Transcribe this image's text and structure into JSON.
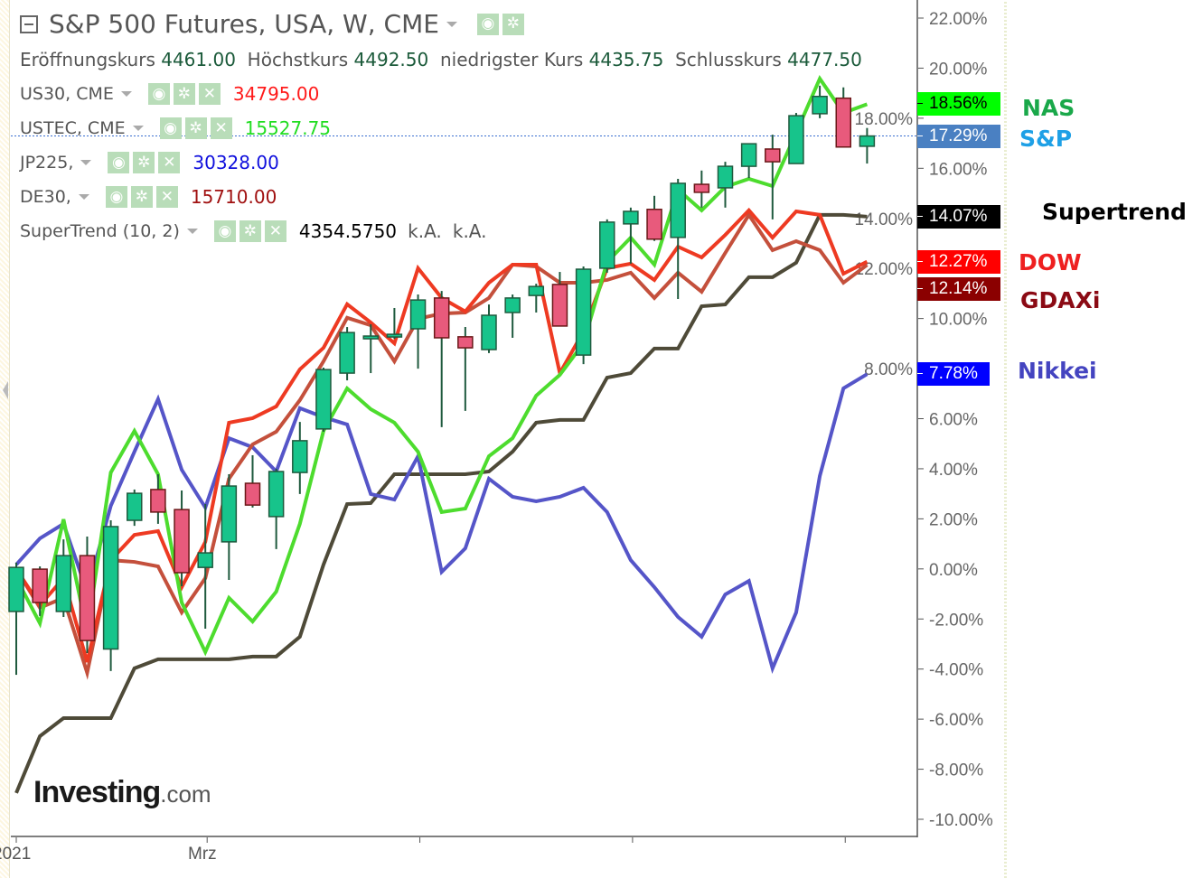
{
  "header": {
    "title": "S&P 500 Futures, USA, W, CME",
    "ohlc_line": [
      {
        "label": "Eröffnungskurs",
        "value": "4461.00"
      },
      {
        "label": "Höchstkurs",
        "value": "4492.50"
      },
      {
        "label": "niedrigster Kurs",
        "value": "4435.75"
      },
      {
        "label": "Schlusskurs",
        "value": "4477.50"
      }
    ]
  },
  "overlays": [
    {
      "name": "US30, CME",
      "value": "34795.00",
      "color": "#ff1a1a"
    },
    {
      "name": "USTEC, CME",
      "value": "15527.75",
      "color": "#22dd22"
    },
    {
      "name": "JP225,",
      "value": "30328.00",
      "color": "#1010dd"
    },
    {
      "name": "DE30,",
      "value": "15710.00",
      "color": "#a01010"
    },
    {
      "name": "SuperTrend (10, 2)",
      "value": "4354.5750",
      "extra1": "k.A.",
      "extra2": "k.A.",
      "color": "#000000"
    }
  ],
  "icons": {
    "visibility": "eye-icon",
    "settings": "gear-icon",
    "remove": "close-icon"
  },
  "logo": {
    "text": "Investing",
    "suffix": ".com"
  },
  "chart_data": {
    "type": "candlestick+line",
    "ylim": [
      -10,
      22
    ],
    "y_ticks": [
      "22.00%",
      "20.00%",
      "18.00%",
      "16.00%",
      "14.00%",
      "12.00%",
      "10.00%",
      "8.00%",
      "6.00%",
      "4.00%",
      "2.00%",
      "0.00%",
      "-2.00%",
      "-4.00%",
      "-6.00%",
      "-8.00%",
      "-10.00%"
    ],
    "y_tick_values": [
      22,
      20,
      18,
      16,
      14,
      12,
      10,
      8,
      6,
      4,
      2,
      0,
      -2,
      -4,
      -6,
      -8,
      -10
    ],
    "x_tick_labels": [
      "2021",
      "Mrz",
      "",
      "",
      ""
    ],
    "x_tick_index": [
      0,
      8,
      17,
      26,
      35
    ],
    "grid": false,
    "candles": {
      "name": "S&P",
      "up_color": "#17c48b",
      "down_color": "#e85a7c",
      "open": [
        -1.7,
        -0.01,
        -1.7,
        0.53,
        -3.2,
        1.94,
        3.17,
        2.37,
        0.06,
        1.08,
        3.42,
        2.09,
        3.85,
        5.59,
        7.82,
        9.19,
        9.3,
        9.59,
        10.82,
        9.27,
        8.76,
        10.24,
        10.92,
        11.36,
        8.54,
        12.01,
        13.78,
        14.36,
        13.24,
        15.36,
        15.22,
        16.08,
        16.77,
        16.19,
        18.18,
        18.8,
        16.88
      ],
      "high": [
        0.25,
        0.1,
        1.18,
        1.29,
        1.94,
        3.17,
        3.78,
        3.13,
        2.59,
        3.78,
        4.54,
        4.0,
        5.87,
        8.04,
        9.66,
        9.77,
        10.42,
        10.96,
        11.1,
        9.66,
        10.56,
        10.96,
        11.39,
        11.86,
        12.08,
        13.96,
        14.43,
        14.9,
        15.58,
        15.91,
        16.26,
        16.98,
        17.34,
        18.21,
        19.3,
        19.23,
        17.61
      ],
      "low": [
        -4.23,
        -1.88,
        -1.92,
        -3.36,
        -4.08,
        1.72,
        1.8,
        -0.69,
        -2.39,
        -0.44,
        2.45,
        0.79,
        2.99,
        5.48,
        7.53,
        7.82,
        9.19,
        8.0,
        5.66,
        6.31,
        8.62,
        9.23,
        10.24,
        9.7,
        8.18,
        11.83,
        12.19,
        13.1,
        10.78,
        14.43,
        14.43,
        15.61,
        13.96,
        16.19,
        18.0,
        16.85,
        16.19
      ],
      "close": [
        0.06,
        -1.34,
        0.53,
        -2.86,
        1.69,
        3.02,
        2.27,
        -0.15,
        0.64,
        3.31,
        2.55,
        3.89,
        5.12,
        7.96,
        9.44,
        9.3,
        9.37,
        10.74,
        9.23,
        8.83,
        10.13,
        10.82,
        11.28,
        9.7,
        11.97,
        13.85,
        14.28,
        13.17,
        15.4,
        15.04,
        16.08,
        16.98,
        16.26,
        18.1,
        18.87,
        16.85,
        17.29
      ],
      "last_label": "17.29%",
      "label_bg": "#4a80c2",
      "label_fg": "#ffffff",
      "annotation_color": "#1ea0e6"
    },
    "series": [
      {
        "name": "NAS",
        "color": "#4ddc2e",
        "label_bg": "#00ff00",
        "label_fg": "#000000",
        "annotation_color": "#1aa84a",
        "last_label": "18.56%",
        "values": [
          -0.37,
          -2.17,
          1.98,
          -2.53,
          3.85,
          5.51,
          3.78,
          -1.34,
          -3.32,
          -1.16,
          -2.1,
          -0.91,
          1.8,
          5.51,
          7.21,
          6.38,
          5.84,
          4.68,
          2.27,
          2.41,
          4.5,
          5.22,
          6.92,
          7.75,
          9.01,
          12.26,
          13.23,
          12.15,
          15.15,
          14.32,
          15.26,
          15.58,
          15.29,
          17.42,
          19.58,
          18.21,
          18.56
        ]
      },
      {
        "name": "Supertrend",
        "color": "#4e4a38",
        "label_bg": "#000000",
        "label_fg": "#ffffff",
        "annotation_color": "#000000",
        "last_label": "14.07%",
        "values": [
          -8.95,
          -6.68,
          -5.96,
          -5.96,
          -5.96,
          -3.97,
          -3.61,
          -3.61,
          -3.61,
          -3.61,
          -3.5,
          -3.5,
          -2.71,
          0.17,
          2.59,
          2.63,
          3.78,
          3.78,
          3.78,
          3.78,
          3.89,
          4.68,
          5.84,
          5.95,
          5.95,
          7.64,
          7.82,
          8.8,
          8.8,
          10.49,
          10.56,
          11.65,
          11.65,
          12.23,
          14.14,
          14.14,
          14.07
        ]
      },
      {
        "name": "DOW",
        "color": "#ee3a22",
        "label_bg": "#ff0000",
        "label_fg": "#ffffff",
        "annotation_color": "#ee2020",
        "last_label": "12.27%",
        "values": [
          -0.01,
          -1.45,
          -0.37,
          -3.72,
          0.35,
          1.36,
          1.51,
          -0.73,
          1.08,
          5.84,
          6.02,
          6.49,
          7.97,
          8.83,
          10.57,
          9.84,
          9.01,
          12.01,
          10.82,
          10.28,
          11.43,
          12.15,
          12.15,
          7.82,
          9.48,
          12.01,
          12.19,
          11.54,
          12.87,
          12.44,
          13.34,
          14.32,
          13.23,
          14.28,
          14.14,
          11.79,
          12.27
        ]
      },
      {
        "name": "GDAXi",
        "color": "#c4503c",
        "label_bg": "#8b0000",
        "label_fg": "#ffffff",
        "annotation_color": "#8b0a14",
        "last_label": "12.14%",
        "values": [
          -0.01,
          -1.55,
          -1.16,
          -4.15,
          0.35,
          0.28,
          0.1,
          -1.74,
          -0.37,
          3.6,
          4.97,
          5.48,
          6.74,
          8.29,
          10.03,
          9.73,
          8.29,
          9.99,
          10.2,
          10.24,
          10.82,
          12.15,
          12.08,
          11.43,
          11.43,
          11.54,
          11.83,
          10.82,
          11.83,
          11.07,
          12.62,
          14.14,
          12.73,
          13.09,
          12.73,
          11.43,
          12.14
        ]
      },
      {
        "name": "Nikkei",
        "color": "#5555c8",
        "label_bg": "#0000ff",
        "label_fg": "#ffffff",
        "annotation_color": "#4444c0",
        "last_label": "7.78%",
        "values": [
          0.17,
          1.22,
          1.8,
          -0.91,
          2.52,
          4.68,
          6.78,
          3.96,
          2.45,
          5.22,
          4.86,
          3.89,
          6.42,
          6.06,
          5.77,
          2.99,
          2.77,
          4.5,
          -0.12,
          0.82,
          3.6,
          2.88,
          2.7,
          2.88,
          3.24,
          2.27,
          0.35,
          -0.73,
          -1.92,
          -2.71,
          -1.02,
          -0.48,
          -3.97,
          -1.74,
          3.71,
          7.21,
          7.78
        ]
      }
    ]
  }
}
